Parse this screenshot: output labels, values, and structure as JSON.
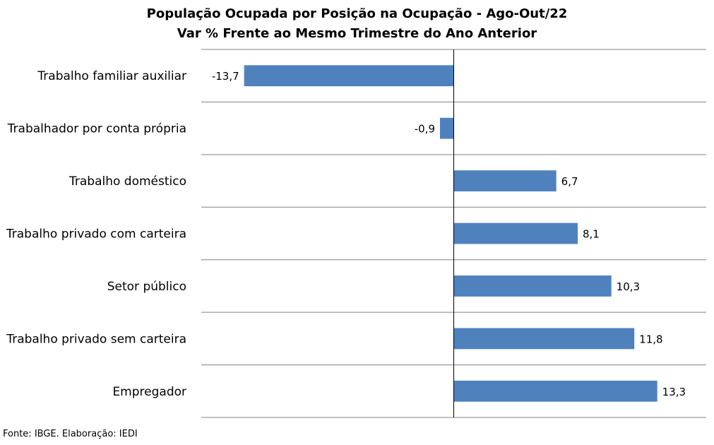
{
  "chart_data": {
    "type": "bar",
    "orientation": "horizontal",
    "title": "População Ocupada por Posição na Ocupação - Ago-Out/22",
    "subtitle": "Var % Frente ao Mesmo Trimestre do Ano Anterior",
    "categories": [
      "Trabalho familiar auxiliar",
      "Trabalhador por conta própria",
      "Trabalho doméstico",
      "Trabalho privado com carteira",
      "Setor público",
      "Trabalho privado sem carteira",
      "Empregador"
    ],
    "values": [
      -13.7,
      -0.9,
      6.7,
      8.1,
      10.3,
      11.8,
      13.3
    ],
    "data_labels": [
      "-13,7",
      "-0,9",
      "6,7",
      "8,1",
      "10,3",
      "11,8",
      "13,3"
    ],
    "xlim": [
      -16.5,
      16.5
    ],
    "grid": "horizontal separators",
    "legend": "none",
    "bar_color": "#4f81bd"
  },
  "source": "Fonte: IBGE. Elaboração: IEDI"
}
